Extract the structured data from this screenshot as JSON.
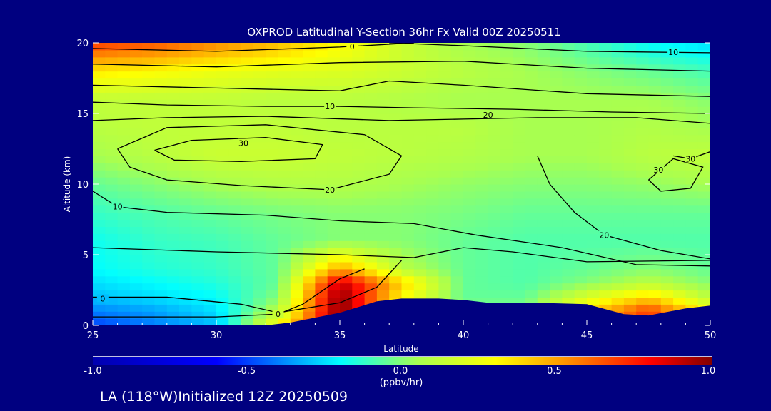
{
  "chart_data": {
    "type": "heatmap",
    "title": "OXPROD Latitudinal Y-Section 36hr  Fx Valid 00Z 20250511",
    "xlabel": "Latitude",
    "ylabel": "Altitude (km)",
    "xlim": [
      25,
      50
    ],
    "ylim": [
      0,
      20
    ],
    "x_ticks": [
      25,
      30,
      35,
      40,
      45,
      50
    ],
    "x_tick_labels": [
      "25",
      "30",
      "35",
      "40",
      "45",
      "50"
    ],
    "y_ticks": [
      0,
      5,
      10,
      15,
      20
    ],
    "y_tick_labels": [
      "0",
      "5",
      "10",
      "15",
      "20"
    ],
    "grid": false,
    "colorbar": {
      "range": [
        -1.0,
        1.0
      ],
      "tick_values": [
        -1.0,
        -0.5,
        0.0,
        0.5,
        1.0
      ],
      "tick_labels": [
        "-1.0",
        "-0.5",
        "0.0",
        "0.5",
        "1.0"
      ],
      "units": "(ppbv/hr)",
      "placement": "bottom",
      "stops": [
        [
          -1.0,
          "#0000b0"
        ],
        [
          -0.6,
          "#0000ff"
        ],
        [
          -0.2,
          "#00ffff"
        ],
        [
          0.05,
          "#a8ff50"
        ],
        [
          0.3,
          "#ffff00"
        ],
        [
          0.5,
          "#ffa000"
        ],
        [
          0.8,
          "#ff0000"
        ],
        [
          1.0,
          "#800000"
        ]
      ]
    },
    "field": {
      "lat": [
        25,
        27.5,
        30,
        32.5,
        35,
        37.5,
        40,
        42.5,
        45,
        47.5,
        50
      ],
      "alt": [
        0,
        1,
        2,
        3,
        4,
        6,
        8,
        10,
        12,
        14,
        16,
        18,
        20
      ],
      "values": [
        [
          -0.5,
          -0.4,
          -0.3,
          0.3,
          1.0,
          0.3,
          0,
          0,
          0.4,
          0.7,
          0.3
        ],
        [
          -0.4,
          -0.35,
          -0.25,
          0.1,
          1.0,
          0.3,
          0,
          0,
          0.4,
          0.7,
          0.3
        ],
        [
          -0.3,
          -0.25,
          -0.2,
          0.0,
          1.0,
          0.3,
          -0.05,
          -0.05,
          0.2,
          0.4,
          0.1
        ],
        [
          -0.25,
          -0.2,
          -0.15,
          -0.05,
          0.9,
          0.4,
          -0.05,
          -0.08,
          0.0,
          0.1,
          0.0
        ],
        [
          -0.2,
          -0.15,
          -0.12,
          -0.05,
          0.5,
          0.1,
          -0.05,
          -0.08,
          -0.05,
          0.0,
          -0.05
        ],
        [
          -0.18,
          -0.12,
          -0.1,
          -0.05,
          0.0,
          0.0,
          -0.05,
          -0.08,
          -0.08,
          -0.08,
          -0.08
        ],
        [
          -0.12,
          -0.08,
          -0.05,
          -0.02,
          0.0,
          0.0,
          -0.02,
          -0.05,
          -0.05,
          -0.05,
          -0.05
        ],
        [
          -0.05,
          0.0,
          0.05,
          0.08,
          0.08,
          0.05,
          0.02,
          0.0,
          0.0,
          0.02,
          0.05
        ],
        [
          0.05,
          0.1,
          0.15,
          0.15,
          0.12,
          0.1,
          0.08,
          0.05,
          0.05,
          0.1,
          0.12
        ],
        [
          0.1,
          0.12,
          0.12,
          0.12,
          0.1,
          0.1,
          0.1,
          0.05,
          0.05,
          0.08,
          0.05
        ],
        [
          0.12,
          0.12,
          0.12,
          0.1,
          0.1,
          0.08,
          0.05,
          0.05,
          0.05,
          0.05,
          0.0
        ],
        [
          0.35,
          0.3,
          0.25,
          0.22,
          0.2,
          0.15,
          0.1,
          0.05,
          0.0,
          -0.05,
          -0.1
        ],
        [
          0.7,
          0.65,
          0.55,
          0.45,
          0.3,
          0.15,
          0.05,
          0.0,
          -0.1,
          -0.2,
          -0.25
        ]
      ]
    },
    "terrain": [
      [
        25,
        0
      ],
      [
        32,
        0
      ],
      [
        33,
        0.2
      ],
      [
        35,
        0.9
      ],
      [
        36.5,
        1.7
      ],
      [
        37.5,
        1.9
      ],
      [
        39,
        1.9
      ],
      [
        40,
        1.8
      ],
      [
        41,
        1.6
      ],
      [
        43,
        1.6
      ],
      [
        45,
        1.5
      ],
      [
        46.5,
        0.8
      ],
      [
        47.5,
        0.7
      ],
      [
        49,
        1.2
      ],
      [
        50,
        1.4
      ]
    ],
    "terrain_color": "#000080",
    "contours": [
      {
        "label": "0",
        "label_at": [
          35.5,
          19.75
        ],
        "points": [
          [
            25,
            19.6
          ],
          [
            30,
            19.4
          ],
          [
            35,
            19.7
          ],
          [
            38,
            20
          ]
        ]
      },
      {
        "label": "10",
        "label_at": [
          48.5,
          19.35
        ],
        "points": [
          [
            37,
            20
          ],
          [
            40,
            19.8
          ],
          [
            45,
            19.4
          ],
          [
            50,
            19.3
          ]
        ]
      },
      {
        "label": "",
        "points": [
          [
            25,
            18.5
          ],
          [
            30,
            18.3
          ],
          [
            35,
            18.6
          ],
          [
            40,
            18.7
          ],
          [
            45,
            18.2
          ],
          [
            50,
            18.0
          ]
        ]
      },
      {
        "label": "",
        "points": [
          [
            25,
            17.0
          ],
          [
            30,
            16.8
          ],
          [
            35,
            16.6
          ],
          [
            37,
            17.3
          ],
          [
            40,
            17.0
          ],
          [
            45,
            16.4
          ],
          [
            50,
            16.2
          ]
        ]
      },
      {
        "label": "10",
        "label_at": [
          34.6,
          15.5
        ],
        "points": [
          [
            25,
            15.8
          ],
          [
            28,
            15.6
          ],
          [
            32,
            15.5
          ],
          [
            35,
            15.5
          ],
          [
            38,
            15.4
          ],
          [
            42,
            15.3
          ],
          [
            46,
            15.1
          ],
          [
            50,
            15.0
          ]
        ]
      },
      {
        "label": "20",
        "label_at": [
          41,
          14.9
        ],
        "points": [
          [
            25,
            14.5
          ],
          [
            28,
            14.7
          ],
          [
            32,
            14.8
          ],
          [
            37,
            14.5
          ],
          [
            40,
            14.6
          ],
          [
            43,
            14.7
          ],
          [
            47,
            14.7
          ],
          [
            50,
            14.3
          ]
        ]
      },
      {
        "label": "20",
        "label_at": [
          34.6,
          9.6
        ],
        "points": [
          [
            26,
            12.5
          ],
          [
            28,
            14
          ],
          [
            32,
            14.2
          ],
          [
            36,
            13.5
          ],
          [
            37.5,
            12
          ],
          [
            37,
            10.7
          ],
          [
            34.6,
            9.6
          ],
          [
            31,
            9.9
          ],
          [
            28,
            10.3
          ],
          [
            26.5,
            11.2
          ],
          [
            26,
            12.5
          ]
        ]
      },
      {
        "label": "30",
        "label_at": [
          31.1,
          12.9
        ],
        "points": [
          [
            27.5,
            12.4
          ],
          [
            29,
            13.1
          ],
          [
            32,
            13.3
          ],
          [
            34.3,
            12.8
          ],
          [
            34,
            11.8
          ],
          [
            31,
            11.6
          ],
          [
            28.3,
            11.7
          ],
          [
            27.5,
            12.4
          ]
        ]
      },
      {
        "label": "10",
        "label_at": [
          26,
          8.4
        ],
        "points": [
          [
            25,
            9.5
          ],
          [
            26,
            8.4
          ],
          [
            28,
            8.0
          ],
          [
            32,
            7.8
          ],
          [
            35,
            7.4
          ],
          [
            38,
            7.2
          ],
          [
            40.5,
            6.4
          ],
          [
            44,
            5.5
          ],
          [
            47,
            4.3
          ],
          [
            50,
            4.2
          ]
        ]
      },
      {
        "label": "20",
        "label_at": [
          45.7,
          6.4
        ],
        "points": [
          [
            43,
            12
          ],
          [
            43.5,
            10
          ],
          [
            44.5,
            8
          ],
          [
            45.7,
            6.4
          ],
          [
            48,
            5.3
          ],
          [
            50,
            4.7
          ]
        ]
      },
      {
        "label": "",
        "points": [
          [
            25,
            5.5
          ],
          [
            30,
            5.2
          ],
          [
            35,
            5.0
          ],
          [
            38,
            4.8
          ],
          [
            40,
            5.5
          ],
          [
            42,
            5.2
          ],
          [
            45,
            4.5
          ],
          [
            50,
            4.6
          ]
        ]
      },
      {
        "label": "0",
        "label_at": [
          25.4,
          1.9
        ],
        "points": [
          [
            25,
            2.0
          ],
          [
            28,
            2.0
          ],
          [
            31,
            1.5
          ],
          [
            32.5,
            0.9
          ],
          [
            35,
            1.6
          ],
          [
            36.5,
            2.7
          ],
          [
            37.5,
            4.6
          ]
        ]
      },
      {
        "label": "0",
        "label_at": [
          32.5,
          0.8
        ],
        "points": [
          [
            25,
            0.6
          ],
          [
            30,
            0.6
          ],
          [
            32.5,
            0.8
          ],
          [
            33.5,
            1.5
          ],
          [
            35,
            3.3
          ],
          [
            36,
            4.0
          ]
        ]
      },
      {
        "label": "30",
        "label_at": [
          47.9,
          11.0
        ],
        "points": [
          [
            47.5,
            10.3
          ],
          [
            48.5,
            11.8
          ],
          [
            49.7,
            11.2
          ],
          [
            49.2,
            9.7
          ],
          [
            48,
            9.5
          ],
          [
            47.5,
            10.3
          ]
        ]
      },
      {
        "label": "30",
        "label_at": [
          49.2,
          11.8
        ],
        "points": [
          [
            48.5,
            12
          ],
          [
            49.2,
            11.8
          ],
          [
            50,
            12.3
          ]
        ]
      }
    ],
    "footer": "LA (118°W)Initialized 12Z 20250509"
  }
}
